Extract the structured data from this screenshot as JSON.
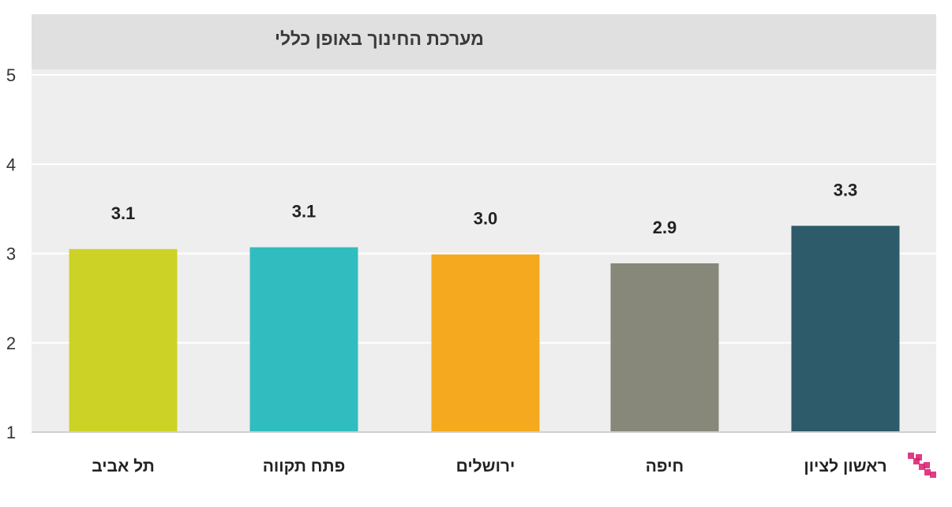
{
  "chart_data": {
    "type": "bar",
    "title": "מערכת החינוך באופן כללי",
    "categories": [
      "תל אביב",
      "פתח תקווה",
      "ירושלים",
      "חיפה",
      "ראשון לציון"
    ],
    "values": [
      3.05,
      3.07,
      2.99,
      2.89,
      3.31
    ],
    "value_labels": [
      "3.1",
      "3.1",
      "3.0",
      "2.9",
      "3.3"
    ],
    "colors": [
      "#cdd326",
      "#31bdbf",
      "#f4a91f",
      "#87887a",
      "#2d5b6a"
    ],
    "ylim": [
      1,
      5
    ],
    "yticks": [
      "1",
      "2",
      "3",
      "4",
      "5"
    ],
    "grid": true,
    "legend": "none"
  },
  "colors": {
    "plot_background": "#eeeeee",
    "title_band": "#e0e0e0",
    "gridline": "#ffffff",
    "logo_accent": "#d81b6e"
  },
  "icons": {
    "logo": "pixel-logo-icon"
  }
}
